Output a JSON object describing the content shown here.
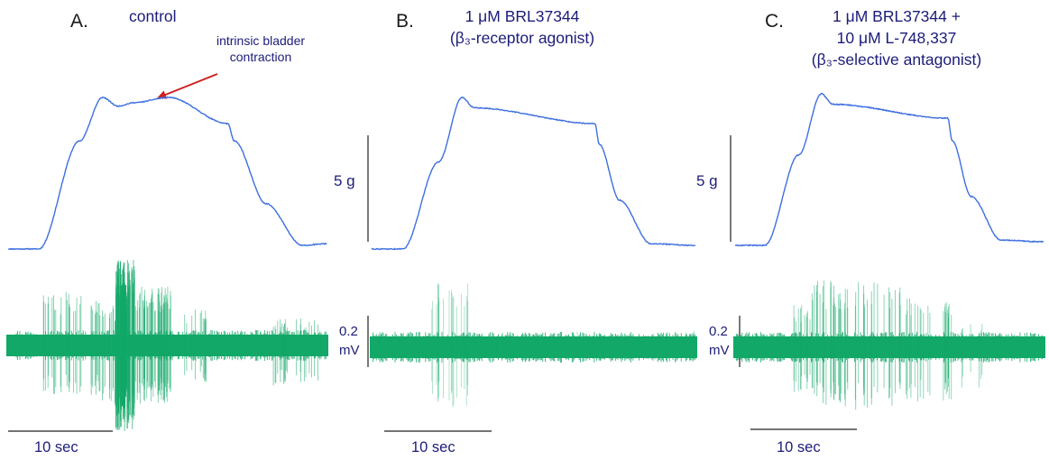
{
  "colors": {
    "force_trace": "#3d6fe0",
    "nerve_trace": "#12a868",
    "arrow": "#d02020",
    "text": "#1c1c7a",
    "scale_bar": "#222222"
  },
  "panels": [
    {
      "letter": "A.",
      "title_lines": [
        "control"
      ],
      "annotation_lines": [
        "intrinsic bladder",
        "contraction"
      ],
      "force_scale_label": "",
      "nerve_scale_label_lines": [],
      "time_label": "10 sec"
    },
    {
      "letter": "B.",
      "title_lines": [
        "1 μM BRL37344",
        "(β₃-receptor agonist)"
      ],
      "annotation_lines": [],
      "force_scale_label": "5 g",
      "nerve_scale_label_lines": [
        "0.2",
        "mV"
      ],
      "time_label": "10 sec"
    },
    {
      "letter": "C.",
      "title_lines": [
        "1 μM BRL37344 +",
        "10 μM  L-748,337",
        "(β₃-selective antagonist)"
      ],
      "annotation_lines": [],
      "force_scale_label": "5 g",
      "nerve_scale_label_lines": [
        "0.2",
        "mV"
      ],
      "time_label": "10 sec"
    }
  ],
  "chart_data": [
    {
      "type": "line",
      "panel": "A",
      "series": [
        {
          "x": [
            0,
            2.8,
            6.5,
            8.6,
            10.0,
            11.5,
            14.6,
            20.0,
            20.6,
            23.5,
            26.8,
            29.0
          ],
          "force": [
            0.0,
            0.0,
            6.2,
            8.7,
            8.2,
            8.4,
            8.7,
            7.2,
            6.2,
            2.6,
            0.2,
            0.3
          ]
        },
        {
          "spikes": "high-amplitude bursts during contraction, largest at peak"
        }
      ]
    },
    {
      "type": "line",
      "panel": "B",
      "series": [
        {
          "x": [
            0,
            2.8,
            6.0,
            8.1,
            9.2,
            20.0,
            20.4,
            22.2,
            25.0,
            29.0
          ],
          "force": [
            0.0,
            0.0,
            5.0,
            8.7,
            8.1,
            7.2,
            6.0,
            2.8,
            0.3,
            0.2
          ]
        },
        {
          "spikes": "small burst during rising phase only"
        }
      ]
    },
    {
      "type": "line",
      "panel": "C",
      "series": [
        {
          "x": [
            0,
            2.8,
            6.0,
            8.1,
            9.2,
            20.0,
            20.4,
            22.2,
            25.0,
            29.0
          ],
          "force": [
            0.0,
            0.0,
            5.2,
            8.7,
            8.1,
            7.3,
            6.0,
            2.8,
            0.3,
            0.2
          ]
        },
        {
          "spikes": "sustained bursts throughout contraction"
        }
      ]
    }
  ]
}
